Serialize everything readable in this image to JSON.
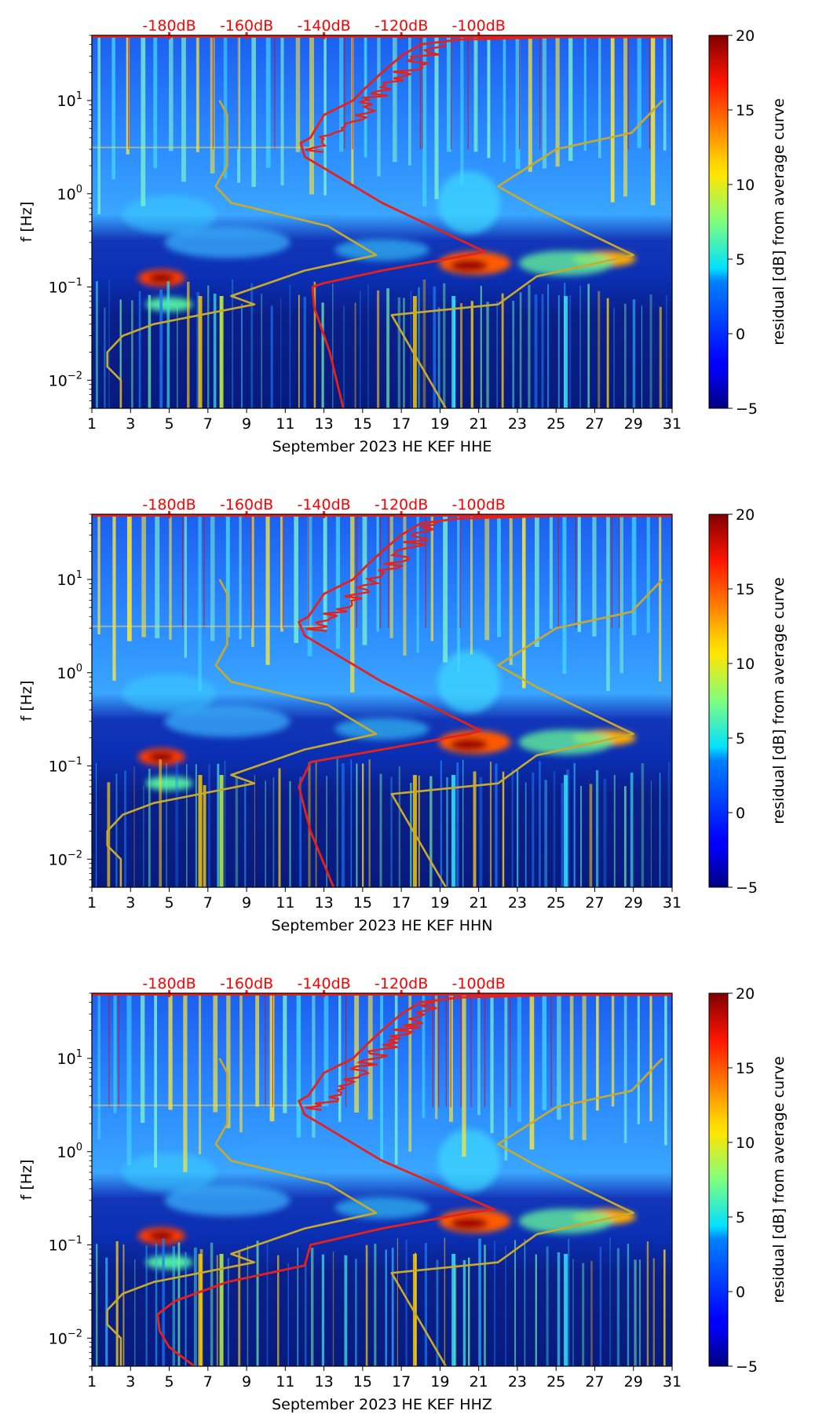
{
  "figure": {
    "colorbar": {
      "label": "residual [dB] from average curve",
      "min": -5,
      "max": 20,
      "ticks": [
        -5,
        0,
        5,
        10,
        15,
        20
      ]
    },
    "ylabel": "f [Hz]",
    "xticks": [
      1,
      3,
      5,
      7,
      9,
      11,
      13,
      15,
      17,
      19,
      21,
      23,
      25,
      27,
      29,
      31
    ],
    "yticks": [
      {
        "value": 0.01,
        "base": "10",
        "exp": "−2"
      },
      {
        "value": 0.1,
        "base": "10",
        "exp": "−1"
      },
      {
        "value": 1,
        "base": "10",
        "exp": "0"
      },
      {
        "value": 10,
        "base": "10",
        "exp": "1"
      }
    ],
    "dbScale": {
      "labels": [
        "-180dB",
        "-160dB",
        "-140dB",
        "-120dB",
        "-100dB"
      ],
      "positions_day": [
        5,
        9,
        13,
        17,
        21
      ]
    },
    "colors": {
      "psd_curve": "#e8201a",
      "noise_model": "#c9aa2a",
      "db_label": "#ff0000"
    }
  },
  "chart_data": [
    {
      "type": "heatmap",
      "title": "",
      "xlabel": "September 2023 HE KEF  HHE",
      "ylabel": "f [Hz]",
      "xlim": [
        1,
        31
      ],
      "ylim": [
        0.005,
        50
      ],
      "series": [
        {
          "name": "median PSD (red)",
          "x_day": [
            14,
            13.3,
            12.5,
            12.4,
            13,
            16,
            20.5,
            21.3,
            16,
            12,
            11.8,
            12.3,
            13,
            14.5,
            15.2,
            16,
            17,
            18,
            20,
            25,
            31
          ],
          "freq_hz": [
            0.005,
            0.02,
            0.06,
            0.1,
            0.11,
            0.15,
            0.22,
            0.24,
            0.8,
            2.5,
            3.5,
            4,
            7,
            10,
            14,
            20,
            30,
            40,
            45,
            48,
            48
          ]
        },
        {
          "name": "NHNM (yellow)",
          "x_day": [
            30.5,
            28.9,
            25,
            22,
            24,
            29,
            24,
            22,
            16.5,
            19.3
          ],
          "freq_hz": [
            10,
            4.5,
            3,
            1.2,
            0.7,
            0.22,
            0.13,
            0.065,
            0.05,
            0.005
          ]
        },
        {
          "name": "NLNM (yellow)",
          "x_day": [
            7.6,
            8,
            8,
            7.4,
            8.2,
            13.2,
            15.7,
            12,
            8.2,
            9.4,
            4.2,
            2.6,
            1.8,
            1.8,
            2.5,
            2.5
          ],
          "freq_hz": [
            10,
            7,
            2,
            1.2,
            0.8,
            0.45,
            0.22,
            0.15,
            0.08,
            0.065,
            0.04,
            0.03,
            0.02,
            0.014,
            0.01,
            0.005
          ]
        }
      ]
    },
    {
      "type": "heatmap",
      "title": "",
      "xlabel": "September 2023 HE KEF  HHN",
      "ylabel": "f [Hz]",
      "xlim": [
        1,
        31
      ],
      "ylim": [
        0.005,
        50
      ],
      "series": [
        {
          "name": "median PSD (red)",
          "x_day": [
            13.5,
            12.9,
            12.3,
            11.7,
            12.3,
            16,
            20.5,
            21.1,
            16,
            12,
            11.7,
            12.2,
            13,
            14.5,
            15.2,
            16,
            17,
            18,
            20,
            25,
            31
          ],
          "freq_hz": [
            0.005,
            0.01,
            0.02,
            0.06,
            0.11,
            0.15,
            0.22,
            0.24,
            0.8,
            2.5,
            3.5,
            4,
            7,
            10,
            14,
            20,
            30,
            40,
            45,
            48,
            48
          ]
        },
        {
          "name": "NHNM (yellow)",
          "x_day": [
            30.5,
            28.9,
            25,
            22,
            24,
            29,
            24,
            22,
            16.5,
            19.3
          ],
          "freq_hz": [
            10,
            4.5,
            3,
            1.2,
            0.7,
            0.22,
            0.13,
            0.065,
            0.05,
            0.005
          ]
        },
        {
          "name": "NLNM (yellow)",
          "x_day": [
            7.6,
            8,
            8,
            7.4,
            8.2,
            13.2,
            15.7,
            12,
            8.2,
            9.4,
            4.2,
            2.6,
            1.8,
            1.8,
            2.5,
            2.5
          ],
          "freq_hz": [
            10,
            7,
            2,
            1.2,
            0.8,
            0.45,
            0.22,
            0.15,
            0.08,
            0.065,
            0.04,
            0.03,
            0.02,
            0.014,
            0.01,
            0.005
          ]
        }
      ]
    },
    {
      "type": "heatmap",
      "title": "",
      "xlabel": "September 2023 HE KEF  HHZ",
      "ylabel": "f [Hz]",
      "xlim": [
        1,
        31
      ],
      "ylim": [
        0.005,
        50
      ],
      "series": [
        {
          "name": "median PSD (red)",
          "x_day": [
            6.3,
            5,
            4.5,
            4.4,
            5.3,
            8,
            12,
            12.3,
            16,
            20.5,
            21.8,
            16,
            12,
            11.7,
            12.2,
            13,
            14.5,
            15.2,
            16,
            17,
            18,
            20,
            25,
            31
          ],
          "freq_hz": [
            0.005,
            0.008,
            0.012,
            0.018,
            0.025,
            0.04,
            0.06,
            0.1,
            0.15,
            0.22,
            0.24,
            0.8,
            2.5,
            3.5,
            4,
            7,
            10,
            14,
            20,
            30,
            40,
            45,
            48,
            48
          ]
        },
        {
          "name": "NHNM (yellow)",
          "x_day": [
            30.5,
            28.9,
            25,
            22,
            24,
            29,
            24,
            22,
            16.5,
            19.3
          ],
          "freq_hz": [
            10,
            4.5,
            3,
            1.2,
            0.7,
            0.22,
            0.13,
            0.065,
            0.05,
            0.005
          ]
        },
        {
          "name": "NLNM (yellow)",
          "x_day": [
            7.6,
            8,
            8,
            7.4,
            8.2,
            13.2,
            15.7,
            12,
            8.2,
            9.4,
            4.2,
            2.6,
            1.8,
            1.8,
            2.5,
            2.5
          ],
          "freq_hz": [
            10,
            7,
            2,
            1.2,
            0.8,
            0.45,
            0.22,
            0.15,
            0.08,
            0.065,
            0.04,
            0.03,
            0.02,
            0.014,
            0.01,
            0.005
          ]
        }
      ]
    }
  ]
}
